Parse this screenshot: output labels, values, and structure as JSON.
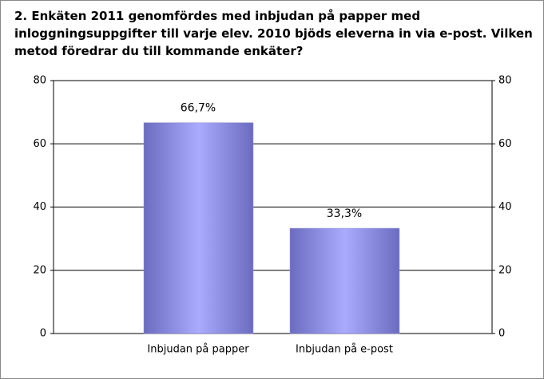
{
  "chart_data": {
    "type": "bar",
    "title": "2. Enkäten 2011 genomfördes med inbjudan på papper med inloggningsuppgifter till varje elev. 2010 bjöds eleverna in via e-post. Vilken metod föredrar du till kommande enkäter?",
    "categories": [
      "Inbjudan på papper",
      "Inbjudan på e-post"
    ],
    "values": [
      66.7,
      33.3
    ],
    "value_labels": [
      "66,7%",
      "33,3%"
    ],
    "color": "#aaaaff",
    "ylim": [
      0,
      80
    ],
    "yticks": [
      0,
      20,
      40,
      60,
      80
    ],
    "y2lim": [
      0,
      80
    ],
    "y2ticks": [
      0,
      20,
      40,
      60,
      80
    ],
    "grid": true
  }
}
